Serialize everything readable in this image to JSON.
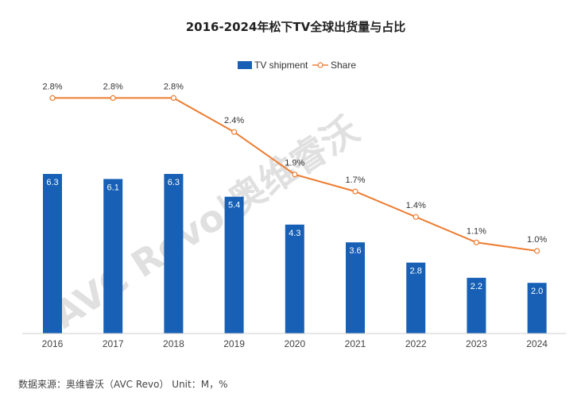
{
  "chart_data": {
    "type": "bar",
    "title": "2016-2024年松下TV全球出货量与占比",
    "categories": [
      "2016",
      "2017",
      "2018",
      "2019",
      "2020",
      "2021",
      "2022",
      "2023",
      "2024"
    ],
    "series": [
      {
        "name": "TV shipment",
        "type": "bar",
        "color": "#1760b5",
        "values": [
          6.3,
          6.1,
          6.3,
          5.4,
          4.3,
          3.6,
          2.8,
          2.2,
          2.0
        ],
        "labels": [
          "6.3",
          "6.1",
          "6.3",
          "5.4",
          "4.3",
          "3.6",
          "2.8",
          "2.2",
          "2.0"
        ]
      },
      {
        "name": "Share",
        "type": "line",
        "color": "#ed7d31",
        "values": [
          2.8,
          2.8,
          2.8,
          2.4,
          1.9,
          1.7,
          1.4,
          1.1,
          1.0
        ],
        "labels": [
          "2.8%",
          "2.8%",
          "2.8%",
          "2.4%",
          "1.9%",
          "1.7%",
          "1.4%",
          "1.1%",
          "1.0%"
        ]
      }
    ],
    "legend": {
      "position": "top-center",
      "items": [
        "TV shipment",
        "Share"
      ]
    },
    "grid": false
  },
  "watermark": {
    "text": "AVC Revo|奥维睿沃"
  },
  "source_note": "数据来源：奥维睿沃（AVC Revo） Unit：M，%"
}
